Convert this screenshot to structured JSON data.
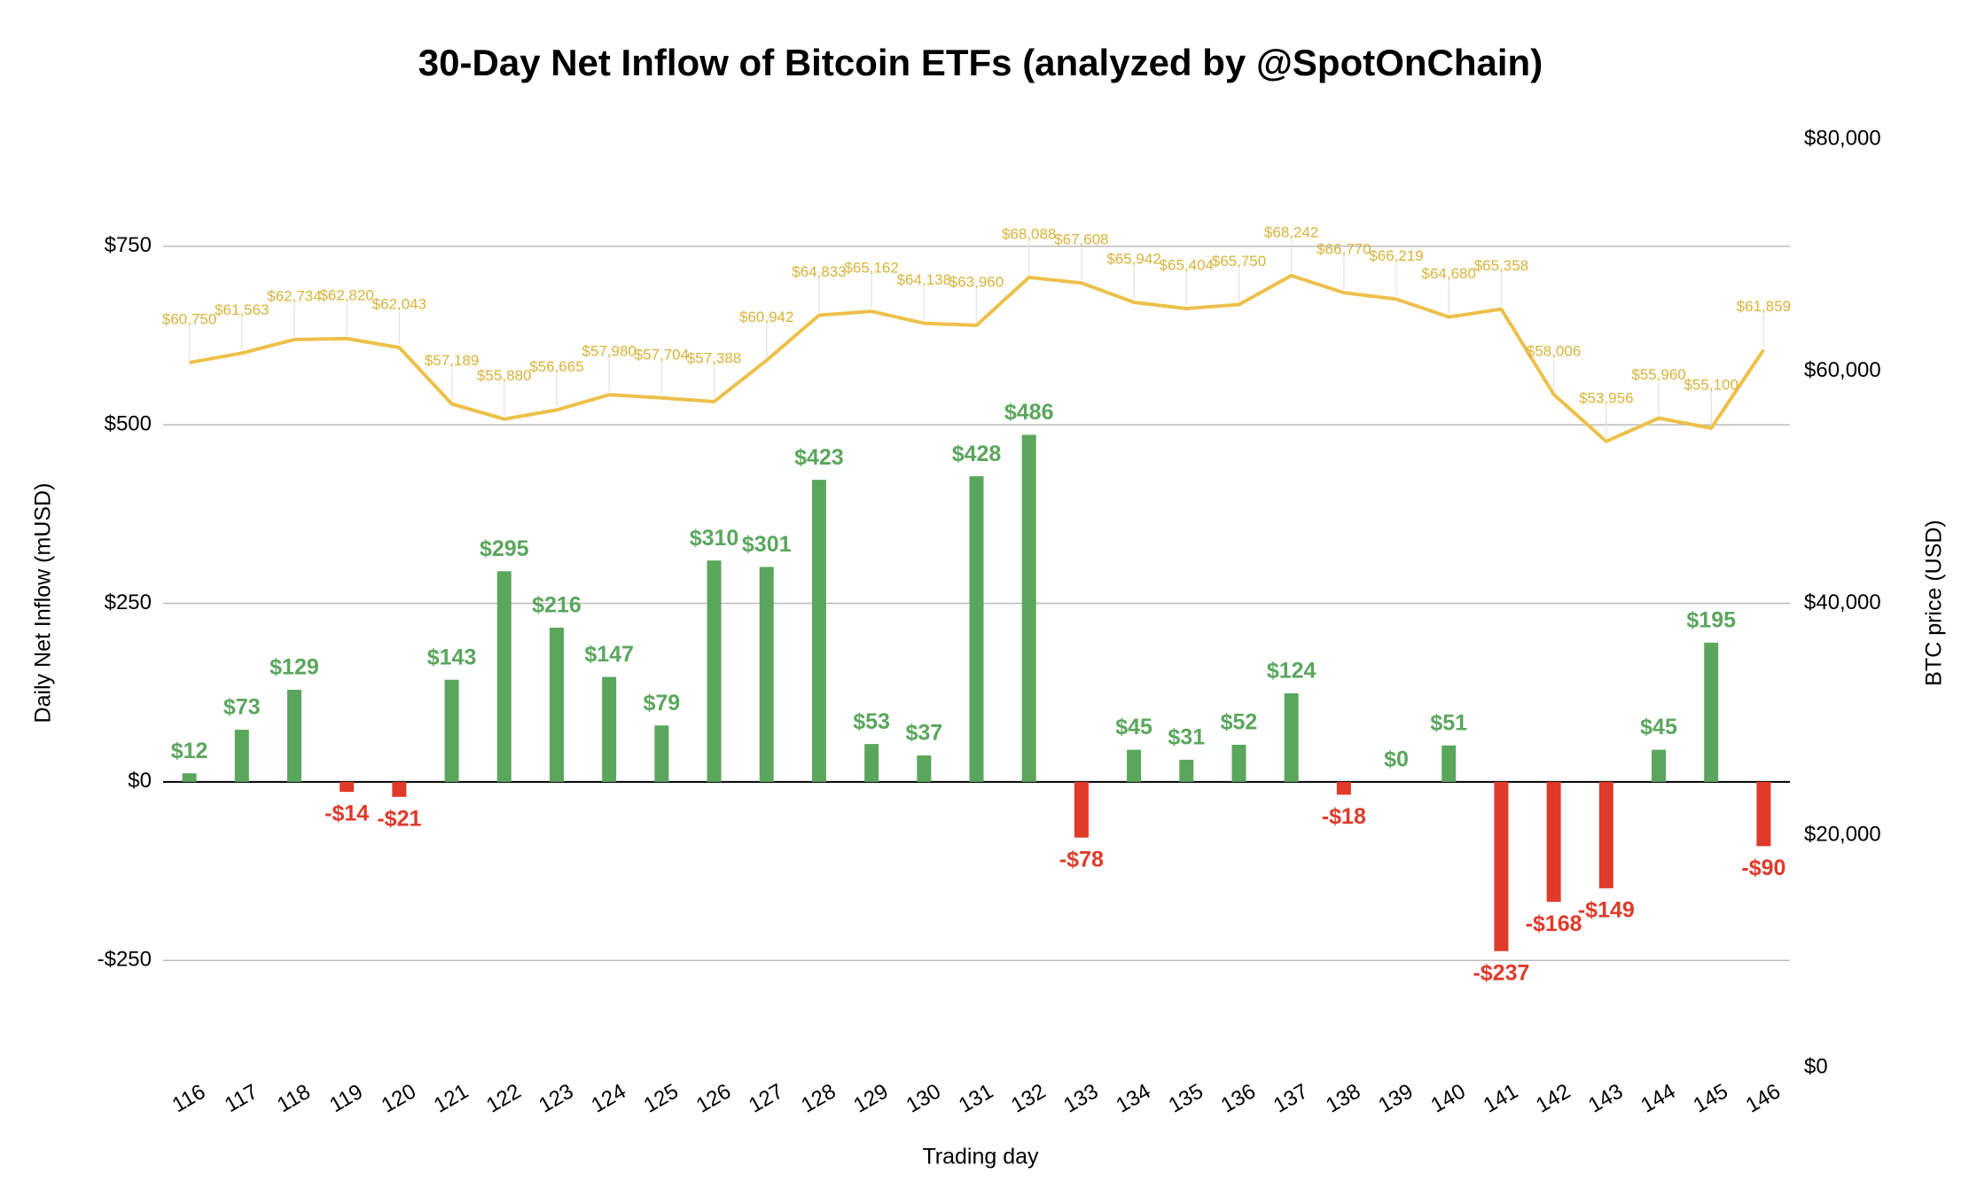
{
  "chart_data": {
    "type": "bar_line",
    "title": "30-Day Net Inflow of Bitcoin ETFs (analyzed by @SpotOnChain)",
    "x_label": "Trading day",
    "y_label": "Daily Net Inflow (mUSD)",
    "y2_label": "BTC price (USD)",
    "categories": [
      "116",
      "117",
      "118",
      "119",
      "120",
      "121",
      "122",
      "123",
      "124",
      "125",
      "126",
      "127",
      "128",
      "129",
      "130",
      "131",
      "132",
      "133",
      "134",
      "135",
      "136",
      "137",
      "138",
      "139",
      "140",
      "141",
      "142",
      "143",
      "144",
      "145",
      "146"
    ],
    "series": [
      {
        "name": "Daily Net Inflow",
        "type": "bar",
        "color": "#5aa65d",
        "negative_color": "#e03a2a",
        "values": [
          12,
          73,
          129,
          -14,
          -21,
          143,
          295,
          216,
          147,
          79,
          310,
          301,
          423,
          53,
          37,
          428,
          486,
          -78,
          45,
          31,
          52,
          124,
          -18,
          0,
          51,
          -237,
          -168,
          -149,
          45,
          195,
          -90
        ],
        "value_labels": [
          "$12",
          "$73",
          "$129",
          "-$14",
          "-$21",
          "$143",
          "$295",
          "$216",
          "$147",
          "$79",
          "$310",
          "$301",
          "$423",
          "$53",
          "$37",
          "$428",
          "$486",
          "-$78",
          "$45",
          "$31",
          "$52",
          "$124",
          "-$18",
          "$0",
          "$51",
          "-$237",
          "-$168",
          "-$149",
          "$45",
          "$195",
          "-$90"
        ]
      },
      {
        "name": "BTC price",
        "type": "line",
        "axis": "y2",
        "color": "#ecc04a",
        "values": [
          60750,
          61563,
          62734,
          62820,
          62043,
          57189,
          55880,
          56665,
          57980,
          57704,
          57388,
          60942,
          64833,
          65162,
          64138,
          63960,
          68088,
          67608,
          65942,
          65404,
          65750,
          68242,
          66770,
          66219,
          64680,
          65358,
          58006,
          53956,
          55960,
          55100,
          61859
        ],
        "value_labels": [
          "$60,750",
          "$61,563",
          "$62,734",
          "$62,820",
          "$62,043",
          "$57,189",
          "$55,880",
          "$56,665",
          "$57,980",
          "$57,704",
          "$57,388",
          "$60,942",
          "$64,833",
          "$65,162",
          "$64,138",
          "$63,960",
          "$68,088",
          "$67,608",
          "$65,942",
          "$65,404",
          "$65,750",
          "$68,242",
          "$66,770",
          "$66,219",
          "$64,680",
          "$65,358",
          "$58,006",
          "$53,956",
          "$55,960",
          "$55,100",
          "$61,859"
        ]
      }
    ],
    "ylim": [
      -400,
      900
    ],
    "yticks": [
      {
        "value": -250,
        "label": "-$250"
      },
      {
        "value": 0,
        "label": "$0"
      },
      {
        "value": 250,
        "label": "$250"
      },
      {
        "value": 500,
        "label": "$500"
      },
      {
        "value": 750,
        "label": "$750"
      }
    ],
    "y2lim": [
      0,
      80000
    ],
    "y2ticks": [
      {
        "value": 0,
        "label": "$0"
      },
      {
        "value": 20000,
        "label": "$20,000"
      },
      {
        "value": 40000,
        "label": "$40,000"
      },
      {
        "value": 60000,
        "label": "$60,000"
      },
      {
        "value": 80000,
        "label": "$80,000"
      }
    ],
    "grid": true
  }
}
